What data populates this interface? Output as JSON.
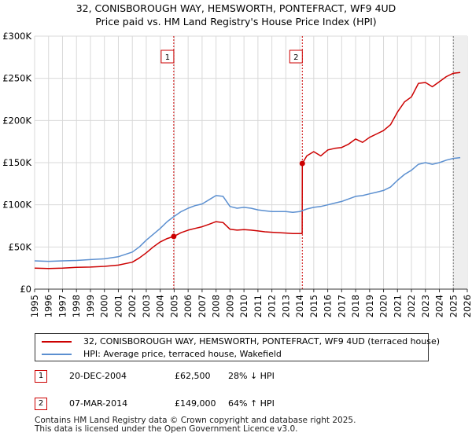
{
  "title": "32, CONISBOROUGH WAY, HEMSWORTH, PONTEFRACT, WF9 4UD",
  "subtitle": "Price paid vs. HM Land Registry's House Price Index (HPI)",
  "chart_data": {
    "type": "line",
    "xlim": [
      1995,
      2026
    ],
    "ylim": [
      0,
      300000
    ],
    "y_ticks": [
      0,
      50000,
      100000,
      150000,
      200000,
      250000,
      300000
    ],
    "y_tick_labels": [
      "£0",
      "£50K",
      "£100K",
      "£150K",
      "£200K",
      "£250K",
      "£300K"
    ],
    "x_ticks": [
      1995,
      1996,
      1997,
      1998,
      1999,
      2000,
      2001,
      2002,
      2003,
      2004,
      2005,
      2006,
      2007,
      2008,
      2009,
      2010,
      2011,
      2012,
      2013,
      2014,
      2015,
      2016,
      2017,
      2018,
      2019,
      2020,
      2021,
      2022,
      2023,
      2024,
      2025,
      2026
    ],
    "grid": true,
    "legend_position": "below",
    "series": [
      {
        "name": "32, CONISBOROUGH WAY, HEMSWORTH, PONTEFRACT, WF9 4UD (terraced house)",
        "color": "#cc0000",
        "points": [
          [
            1995.0,
            25000
          ],
          [
            1996.0,
            24500
          ],
          [
            1997.0,
            25000
          ],
          [
            1998.0,
            25800
          ],
          [
            1999.0,
            26200
          ],
          [
            2000.0,
            27000
          ],
          [
            2001.0,
            28500
          ],
          [
            2002.0,
            32000
          ],
          [
            2002.5,
            37000
          ],
          [
            2003.0,
            43000
          ],
          [
            2003.5,
            50000
          ],
          [
            2004.0,
            56000
          ],
          [
            2004.5,
            60000
          ],
          [
            2004.97,
            62500
          ],
          [
            2005.5,
            67000
          ],
          [
            2006.0,
            70000
          ],
          [
            2006.5,
            72000
          ],
          [
            2007.0,
            74000
          ],
          [
            2007.5,
            77000
          ],
          [
            2008.0,
            80000
          ],
          [
            2008.5,
            79000
          ],
          [
            2009.0,
            71000
          ],
          [
            2009.5,
            70000
          ],
          [
            2010.0,
            70500
          ],
          [
            2010.5,
            70000
          ],
          [
            2011.0,
            69000
          ],
          [
            2011.5,
            68000
          ],
          [
            2012.0,
            67500
          ],
          [
            2012.5,
            67000
          ],
          [
            2013.0,
            66500
          ],
          [
            2013.5,
            66000
          ],
          [
            2014.17,
            66000
          ],
          [
            2014.18,
            149000
          ],
          [
            2014.5,
            158000
          ],
          [
            2015.0,
            163000
          ],
          [
            2015.5,
            158000
          ],
          [
            2016.0,
            165000
          ],
          [
            2016.5,
            167000
          ],
          [
            2017.0,
            168000
          ],
          [
            2017.5,
            172000
          ],
          [
            2018.0,
            178000
          ],
          [
            2018.5,
            174000
          ],
          [
            2019.0,
            180000
          ],
          [
            2019.5,
            184000
          ],
          [
            2020.0,
            188000
          ],
          [
            2020.5,
            195000
          ],
          [
            2021.0,
            210000
          ],
          [
            2021.5,
            222000
          ],
          [
            2022.0,
            228000
          ],
          [
            2022.5,
            244000
          ],
          [
            2023.0,
            245000
          ],
          [
            2023.5,
            240000
          ],
          [
            2024.0,
            246000
          ],
          [
            2024.5,
            252000
          ],
          [
            2025.0,
            256000
          ],
          [
            2025.5,
            257000
          ]
        ]
      },
      {
        "name": "HPI: Average price, terraced house, Wakefield",
        "color": "#5b8fd0",
        "points": [
          [
            1995.0,
            33500
          ],
          [
            1996.0,
            33000
          ],
          [
            1997.0,
            33500
          ],
          [
            1998.0,
            34000
          ],
          [
            1999.0,
            35000
          ],
          [
            2000.0,
            36000
          ],
          [
            2001.0,
            38500
          ],
          [
            2002.0,
            44000
          ],
          [
            2002.5,
            50000
          ],
          [
            2003.0,
            58000
          ],
          [
            2003.5,
            65000
          ],
          [
            2004.0,
            72000
          ],
          [
            2004.5,
            80000
          ],
          [
            2004.97,
            86000
          ],
          [
            2005.5,
            92000
          ],
          [
            2006.0,
            96000
          ],
          [
            2006.5,
            99000
          ],
          [
            2007.0,
            101000
          ],
          [
            2007.5,
            106000
          ],
          [
            2008.0,
            111000
          ],
          [
            2008.5,
            110000
          ],
          [
            2009.0,
            98000
          ],
          [
            2009.5,
            96000
          ],
          [
            2010.0,
            97000
          ],
          [
            2010.5,
            96000
          ],
          [
            2011.0,
            94000
          ],
          [
            2011.5,
            93000
          ],
          [
            2012.0,
            92000
          ],
          [
            2012.5,
            92000
          ],
          [
            2013.0,
            92000
          ],
          [
            2013.5,
            91000
          ],
          [
            2014.0,
            92000
          ],
          [
            2014.5,
            95000
          ],
          [
            2015.0,
            97000
          ],
          [
            2015.5,
            98000
          ],
          [
            2016.0,
            100000
          ],
          [
            2016.5,
            102000
          ],
          [
            2017.0,
            104000
          ],
          [
            2017.5,
            107000
          ],
          [
            2018.0,
            110000
          ],
          [
            2018.5,
            111000
          ],
          [
            2019.0,
            113000
          ],
          [
            2019.5,
            115000
          ],
          [
            2020.0,
            117000
          ],
          [
            2020.5,
            121000
          ],
          [
            2021.0,
            129000
          ],
          [
            2021.5,
            136000
          ],
          [
            2022.0,
            141000
          ],
          [
            2022.5,
            148000
          ],
          [
            2023.0,
            150000
          ],
          [
            2023.5,
            148000
          ],
          [
            2024.0,
            150000
          ],
          [
            2024.5,
            153000
          ],
          [
            2025.0,
            155000
          ],
          [
            2025.5,
            156000
          ]
        ]
      }
    ],
    "sales": [
      {
        "label": "1",
        "x": 2004.97,
        "y": 62500
      },
      {
        "label": "2",
        "x": 2014.18,
        "y": 149000
      }
    ],
    "shaded_region": {
      "from": 2025.0,
      "to": 2026.0
    }
  },
  "legend": {
    "property_label": "32, CONISBOROUGH WAY, HEMSWORTH, PONTEFRACT, WF9 4UD (terraced house)",
    "hpi_label": "HPI: Average price, terraced house, Wakefield"
  },
  "transactions": [
    {
      "num": "1",
      "date": "20-DEC-2004",
      "price": "£62,500",
      "hpi": "28% ↓ HPI"
    },
    {
      "num": "2",
      "date": "07-MAR-2014",
      "price": "£149,000",
      "hpi": "64% ↑ HPI"
    }
  ],
  "footer": {
    "line1": "Contains HM Land Registry data © Crown copyright and database right 2025.",
    "line2": "This data is licensed under the Open Government Licence v3.0."
  }
}
